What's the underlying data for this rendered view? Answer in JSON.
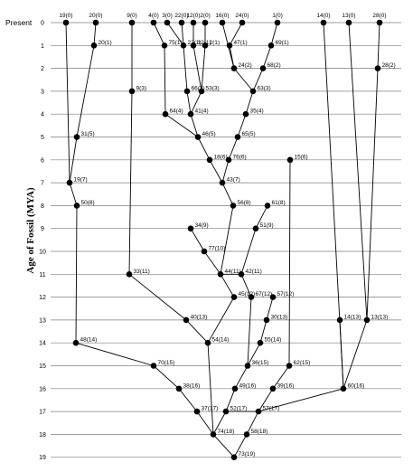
{
  "y_axis_title": "Age of Fossil (MYA)",
  "present_label": "Present",
  "chart_data": {
    "type": "tree",
    "ylabel": "Age of Fossil (MYA)",
    "ylim": [
      0,
      19
    ],
    "grid": true,
    "ticks": [
      0,
      1,
      2,
      3,
      4,
      5,
      6,
      7,
      8,
      9,
      10,
      11,
      12,
      13,
      14,
      15,
      16,
      17,
      18,
      19
    ],
    "nodes": [
      {
        "id": "19",
        "age": 0,
        "label": "19(0)"
      },
      {
        "id": "20",
        "age": 0,
        "label": "20(0)"
      },
      {
        "id": "9",
        "age": 0,
        "label": "9(0)"
      },
      {
        "id": "4",
        "age": 0,
        "label": "4(0)"
      },
      {
        "id": "3",
        "age": 0,
        "label": "3(0)"
      },
      {
        "id": "22",
        "age": 0,
        "label": "22(0)"
      },
      {
        "id": "12",
        "age": 0,
        "label": "12(0)"
      },
      {
        "id": "2",
        "age": 0,
        "label": "2(0)"
      },
      {
        "id": "16",
        "age": 0,
        "label": "16(0)"
      },
      {
        "id": "24",
        "age": 0,
        "label": "24(0)"
      },
      {
        "id": "1",
        "age": 0,
        "label": "1(0)"
      },
      {
        "id": "14",
        "age": 0,
        "label": "14(0)"
      },
      {
        "id": "13",
        "age": 0,
        "label": "13(0)"
      },
      {
        "id": "28",
        "age": 0,
        "label": "28(0)"
      },
      {
        "id": "20b",
        "age": 1,
        "label": "20(1)"
      },
      {
        "id": "75",
        "age": 1,
        "label": "75(1)"
      },
      {
        "id": "22b",
        "age": 1,
        "label": "22(1)"
      },
      {
        "id": "12b",
        "age": 1,
        "label": "12(1)"
      },
      {
        "id": "2b",
        "age": 1,
        "label": "2(1)"
      },
      {
        "id": "47",
        "age": 1,
        "label": "47(1)"
      },
      {
        "id": "69",
        "age": 1,
        "label": "69(1)"
      },
      {
        "id": "24b",
        "age": 2,
        "label": "24(2)"
      },
      {
        "id": "68",
        "age": 2,
        "label": "68(2)"
      },
      {
        "id": "28b",
        "age": 2,
        "label": "28(2)"
      },
      {
        "id": "9b",
        "age": 3,
        "label": "9(3)"
      },
      {
        "id": "66",
        "age": 3,
        "label": "66(3)"
      },
      {
        "id": "53",
        "age": 3,
        "label": "53(3)"
      },
      {
        "id": "63",
        "age": 3,
        "label": "63(3)"
      },
      {
        "id": "64",
        "age": 4,
        "label": "64(4)"
      },
      {
        "id": "41",
        "age": 4,
        "label": "41(4)"
      },
      {
        "id": "35",
        "age": 4,
        "label": "35(4)"
      },
      {
        "id": "31",
        "age": 5,
        "label": "31(5)"
      },
      {
        "id": "46",
        "age": 5,
        "label": "46(5)"
      },
      {
        "id": "65",
        "age": 5,
        "label": "65(5)"
      },
      {
        "id": "18",
        "age": 6,
        "label": "18(6)"
      },
      {
        "id": "76",
        "age": 6,
        "label": "76(6)"
      },
      {
        "id": "15",
        "age": 6,
        "label": "15(6)"
      },
      {
        "id": "19b",
        "age": 7,
        "label": "19(7)"
      },
      {
        "id": "43",
        "age": 7,
        "label": "43(7)"
      },
      {
        "id": "50",
        "age": 8,
        "label": "50(8)"
      },
      {
        "id": "56",
        "age": 8,
        "label": "56(8)"
      },
      {
        "id": "61",
        "age": 8,
        "label": "61(8)"
      },
      {
        "id": "34",
        "age": 9,
        "label": "34(9)"
      },
      {
        "id": "51",
        "age": 9,
        "label": "51(9)"
      },
      {
        "id": "77",
        "age": 10,
        "label": "77(10)"
      },
      {
        "id": "33",
        "age": 11,
        "label": "33(11)"
      },
      {
        "id": "44",
        "age": 11,
        "label": "44(11)"
      },
      {
        "id": "42",
        "age": 11,
        "label": "42(11)"
      },
      {
        "id": "45",
        "age": 12,
        "label": "45(12)"
      },
      {
        "id": "67",
        "age": 12,
        "label": "67(12)"
      },
      {
        "id": "57",
        "age": 12,
        "label": "57(12)"
      },
      {
        "id": "40",
        "age": 13,
        "label": "40(13)"
      },
      {
        "id": "30",
        "age": 13,
        "label": "30(13)"
      },
      {
        "id": "14b",
        "age": 13,
        "label": "14(13)"
      },
      {
        "id": "13b",
        "age": 13,
        "label": "13(13)"
      },
      {
        "id": "48",
        "age": 14,
        "label": "48(14)"
      },
      {
        "id": "54",
        "age": 14,
        "label": "54(14)"
      },
      {
        "id": "55",
        "age": 14,
        "label": "55(14)"
      },
      {
        "id": "70",
        "age": 15,
        "label": "70(15)"
      },
      {
        "id": "36",
        "age": 15,
        "label": "36(15)"
      },
      {
        "id": "62",
        "age": 15,
        "label": "62(15)"
      },
      {
        "id": "38",
        "age": 16,
        "label": "38(16)"
      },
      {
        "id": "49",
        "age": 16,
        "label": "49(16)"
      },
      {
        "id": "39",
        "age": 16,
        "label": "39(16)"
      },
      {
        "id": "60",
        "age": 16,
        "label": "60(16)"
      },
      {
        "id": "37",
        "age": 17,
        "label": "37(17)"
      },
      {
        "id": "52",
        "age": 17,
        "label": "52(17)"
      },
      {
        "id": "57b",
        "age": 17,
        "label": "57(17)"
      },
      {
        "id": "74",
        "age": 18,
        "label": "74(18)"
      },
      {
        "id": "58",
        "age": 18,
        "label": "58(18)"
      },
      {
        "id": "73",
        "age": 19,
        "label": "73(19)"
      }
    ],
    "edges": [
      [
        "19",
        "19b"
      ],
      [
        "20",
        "20b"
      ],
      [
        "20b",
        "31"
      ],
      [
        "31",
        "19b"
      ],
      [
        "19b",
        "50"
      ],
      [
        "50",
        "48"
      ],
      [
        "48",
        "70"
      ],
      [
        "9",
        "9b"
      ],
      [
        "9b",
        "33"
      ],
      [
        "33",
        "40"
      ],
      [
        "40",
        "54"
      ],
      [
        "4",
        "75"
      ],
      [
        "75",
        "64"
      ],
      [
        "64",
        "46"
      ],
      [
        "46",
        "18"
      ],
      [
        "18",
        "43"
      ],
      [
        "43",
        "56"
      ],
      [
        "56",
        "44"
      ],
      [
        "3",
        "22b"
      ],
      [
        "22",
        "22b"
      ],
      [
        "22b",
        "66"
      ],
      [
        "66",
        "41"
      ],
      [
        "41",
        "46"
      ],
      [
        "12",
        "12b"
      ],
      [
        "2",
        "2b"
      ],
      [
        "12b",
        "53"
      ],
      [
        "2b",
        "53"
      ],
      [
        "53",
        "41"
      ],
      [
        "16",
        "24b"
      ],
      [
        "47",
        "24b"
      ],
      [
        "24",
        "47"
      ],
      [
        "24b",
        "63"
      ],
      [
        "1",
        "69"
      ],
      [
        "69",
        "68"
      ],
      [
        "68",
        "63"
      ],
      [
        "63",
        "35"
      ],
      [
        "35",
        "65"
      ],
      [
        "65",
        "76"
      ],
      [
        "76",
        "43"
      ],
      [
        "61",
        "51"
      ],
      [
        "51",
        "42"
      ],
      [
        "34",
        "77"
      ],
      [
        "77",
        "44"
      ],
      [
        "44",
        "42"
      ],
      [
        "44",
        "45"
      ],
      [
        "45",
        "54"
      ],
      [
        "54",
        "74"
      ],
      [
        "42",
        "67"
      ],
      [
        "67",
        "36"
      ],
      [
        "57",
        "30"
      ],
      [
        "30",
        "55"
      ],
      [
        "55",
        "36"
      ],
      [
        "36",
        "49"
      ],
      [
        "49",
        "52"
      ],
      [
        "15",
        "62"
      ],
      [
        "62",
        "39"
      ],
      [
        "39",
        "57b"
      ],
      [
        "57b",
        "52"
      ],
      [
        "57b",
        "58"
      ],
      [
        "58",
        "73"
      ],
      [
        "14",
        "60"
      ],
      [
        "28",
        "28b"
      ],
      [
        "28b",
        "13b"
      ],
      [
        "13",
        "13b"
      ],
      [
        "13b",
        "60"
      ],
      [
        "14b",
        "60"
      ],
      [
        "60",
        "57b"
      ],
      [
        "70",
        "38"
      ],
      [
        "38",
        "37"
      ],
      [
        "37",
        "74"
      ],
      [
        "74",
        "73"
      ],
      [
        "52",
        "74"
      ]
    ]
  }
}
